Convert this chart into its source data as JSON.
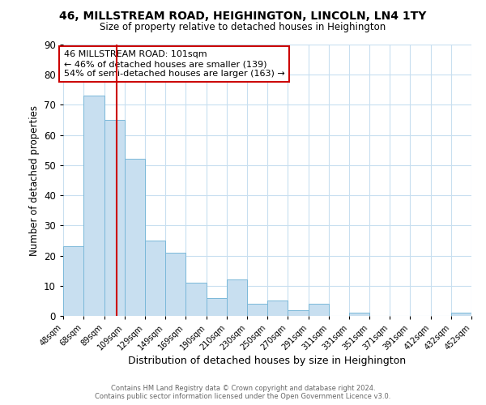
{
  "title": "46, MILLSTREAM ROAD, HEIGHINGTON, LINCOLN, LN4 1TY",
  "subtitle": "Size of property relative to detached houses in Heighington",
  "xlabel": "Distribution of detached houses by size in Heighington",
  "ylabel": "Number of detached properties",
  "bar_color": "#c8dff0",
  "bar_edge_color": "#7ab8d9",
  "background_color": "#ffffff",
  "grid_color": "#c8dff0",
  "annotation_box_color": "#ffffff",
  "annotation_border_color": "#cc0000",
  "vline_color": "#cc0000",
  "vline_x": 101,
  "bin_edges": [
    48,
    68,
    89,
    109,
    129,
    149,
    169,
    190,
    210,
    230,
    250,
    270,
    291,
    311,
    331,
    351,
    371,
    391,
    412,
    432,
    452
  ],
  "bin_labels": [
    "48sqm",
    "68sqm",
    "89sqm",
    "109sqm",
    "129sqm",
    "149sqm",
    "169sqm",
    "190sqm",
    "210sqm",
    "230sqm",
    "250sqm",
    "270sqm",
    "291sqm",
    "311sqm",
    "331sqm",
    "351sqm",
    "371sqm",
    "391sqm",
    "412sqm",
    "432sqm",
    "452sqm"
  ],
  "counts": [
    23,
    73,
    65,
    52,
    25,
    21,
    11,
    6,
    12,
    4,
    5,
    2,
    4,
    0,
    1,
    0,
    0,
    0,
    0,
    1
  ],
  "ylim": [
    0,
    90
  ],
  "yticks": [
    0,
    10,
    20,
    30,
    40,
    50,
    60,
    70,
    80,
    90
  ],
  "annotation_line1": "46 MILLSTREAM ROAD: 101sqm",
  "annotation_line2": "← 46% of detached houses are smaller (139)",
  "annotation_line3": "54% of semi-detached houses are larger (163) →",
  "footer_line1": "Contains HM Land Registry data © Crown copyright and database right 2024.",
  "footer_line2": "Contains public sector information licensed under the Open Government Licence v3.0."
}
